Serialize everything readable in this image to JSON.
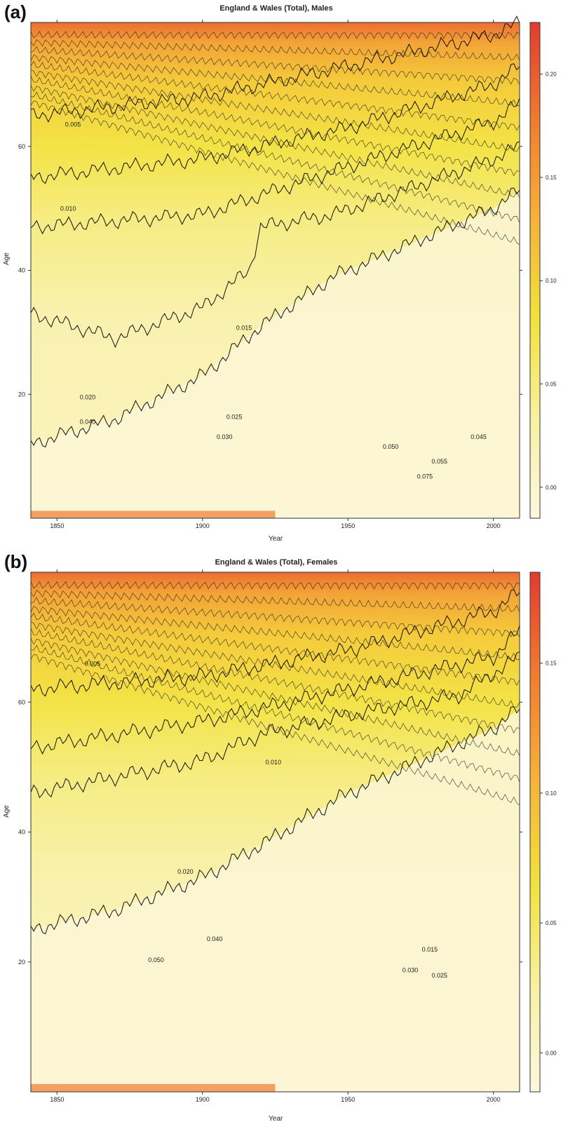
{
  "panels": [
    {
      "label": "(a)",
      "title": "England & Wales (Total), Males",
      "xlabel": "Year",
      "ylabel": "Age",
      "xticks": [
        "1850",
        "1900",
        "1950",
        "2000"
      ],
      "yticks": [
        "20",
        "40",
        "60"
      ],
      "colorbar_ticks": [
        "0.00",
        "0.05",
        "0.10",
        "0.15",
        "0.20"
      ],
      "contour_labels": [
        "0.005",
        "0.010",
        "0.015",
        "0.020",
        "0.025",
        "0.030",
        "0.040",
        "0.045",
        "0.050",
        "0.055",
        "0.075"
      ]
    },
    {
      "label": "(b)",
      "title": "England & Wales (Total), Females",
      "xlabel": "Year",
      "ylabel": "Age",
      "xticks": [
        "1850",
        "1900",
        "1950",
        "2000"
      ],
      "yticks": [
        "20",
        "40",
        "60"
      ],
      "colorbar_ticks": [
        "0.00",
        "0.05",
        "0.10",
        "0.15"
      ],
      "contour_labels": [
        "0.005",
        "0.010",
        "0.015",
        "0.020",
        "0.025",
        "0.030",
        "0.040",
        "0.050"
      ]
    }
  ],
  "chart_data": [
    {
      "type": "heatmap",
      "title": "England & Wales (Total), Males",
      "xlabel": "Year",
      "ylabel": "Age",
      "xlim": [
        1841,
        2009
      ],
      "ylim": [
        0,
        80
      ],
      "zlim": [
        -0.015,
        0.225
      ],
      "colormap": [
        "#fdf7df",
        "#f8f0a3",
        "#f2e23c",
        "#f5b33a",
        "#ef7d31",
        "#e33b30"
      ],
      "contour_levels": [
        0.005,
        0.01,
        0.015,
        0.02,
        0.025,
        0.03,
        0.04,
        0.045,
        0.05,
        0.055,
        0.075
      ],
      "contour_age_by_year": [
        {
          "level": 0.01,
          "x": [
            1841,
            1870,
            1900,
            1916,
            1920,
            1945,
            1970,
            2000,
            2009
          ],
          "y": [
            33,
            29,
            34,
            40,
            47,
            49,
            53,
            58,
            60
          ]
        },
        {
          "level": 0.02,
          "x": [
            1841,
            1900,
            1945,
            2000,
            2009
          ],
          "y": [
            47,
            49,
            56,
            64,
            67
          ]
        },
        {
          "level": 0.03,
          "x": [
            1841,
            1900,
            1950,
            2000,
            2009
          ],
          "y": [
            55,
            58,
            63,
            70,
            73
          ]
        },
        {
          "level": 0.05,
          "x": [
            1841,
            1900,
            1950,
            2000,
            2009
          ],
          "y": [
            65,
            68,
            73,
            78,
            80
          ]
        },
        {
          "level": 0.005,
          "x": [
            1841,
            1870,
            1900,
            1920,
            1945,
            1970,
            2000,
            2009
          ],
          "y": [
            12,
            16,
            23,
            31,
            39,
            44,
            50,
            53
          ]
        }
      ]
    },
    {
      "type": "heatmap",
      "title": "England & Wales (Total), Females",
      "xlabel": "Year",
      "ylabel": "Age",
      "xlim": [
        1841,
        2009
      ],
      "ylim": [
        0,
        80
      ],
      "zlim": [
        -0.015,
        0.185
      ],
      "colormap": [
        "#fdf7df",
        "#f8f0a3",
        "#f2e23c",
        "#f5b33a",
        "#ef7d31",
        "#e33b30"
      ],
      "contour_levels": [
        0.005,
        0.01,
        0.015,
        0.02,
        0.025,
        0.03,
        0.04,
        0.05
      ],
      "contour_age_by_year": [
        {
          "level": 0.01,
          "x": [
            1841,
            1900,
            1920,
            1950,
            1988,
            2009
          ],
          "y": [
            46,
            51,
            55,
            58,
            61,
            67
          ]
        },
        {
          "level": 0.02,
          "x": [
            1841,
            1900,
            1950,
            2000,
            2009
          ],
          "y": [
            53,
            57,
            62,
            67,
            71
          ]
        },
        {
          "level": 0.03,
          "x": [
            1841,
            1900,
            1950,
            2000,
            2009
          ],
          "y": [
            62,
            64,
            68,
            74,
            77
          ]
        },
        {
          "level": 0.005,
          "x": [
            1841,
            1870,
            1900,
            1920,
            1950,
            2000,
            2009
          ],
          "y": [
            25,
            28,
            33,
            38,
            46,
            56,
            59
          ]
        }
      ]
    }
  ]
}
